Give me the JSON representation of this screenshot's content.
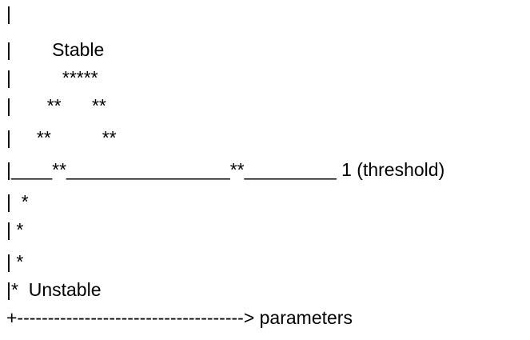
{
  "diagram": {
    "lines": [
      "|",
      "|        Stable",
      "|          *****",
      "|       **      **",
      "|     **          **",
      "|____**________________**_________ 1 (threshold)",
      "|  *",
      "| *",
      "| *",
      "|*  Unstable",
      "+-------------------------------------> parameters"
    ],
    "colors": {
      "text": "#000000",
      "background": "#ffffff"
    }
  }
}
